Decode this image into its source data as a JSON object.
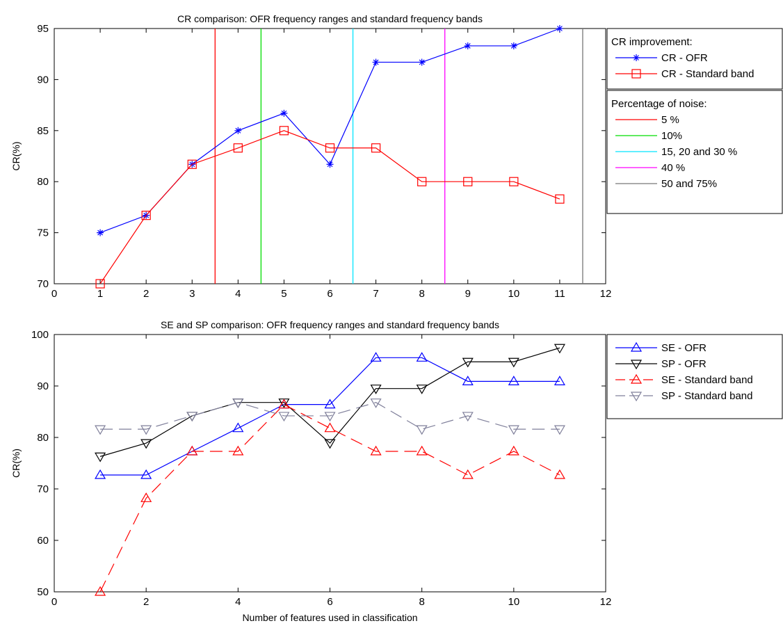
{
  "chart_data": [
    {
      "type": "line",
      "title": "CR comparison: OFR frequency ranges and standard frequency bands",
      "xlabel": "",
      "ylabel": "CR(%)",
      "xlim": [
        0,
        12
      ],
      "ylim": [
        70,
        95
      ],
      "xticks": [
        0,
        1,
        2,
        3,
        4,
        5,
        6,
        7,
        8,
        9,
        10,
        11,
        12
      ],
      "yticks": [
        70,
        75,
        80,
        85,
        90,
        95
      ],
      "grid": false,
      "series": [
        {
          "name": "CR - OFR",
          "color": "#0000ff",
          "marker": "asterisk",
          "dash": "solid",
          "x": [
            1,
            2,
            3,
            4,
            5,
            6,
            7,
            8,
            9,
            10,
            11
          ],
          "values": [
            75,
            76.7,
            81.7,
            85,
            86.7,
            81.7,
            91.7,
            91.7,
            93.3,
            93.3,
            95
          ]
        },
        {
          "name": "CR - Standard band",
          "color": "#ff0000",
          "marker": "square",
          "dash": "solid",
          "x": [
            1,
            2,
            3,
            4,
            5,
            6,
            7,
            8,
            9,
            10,
            11
          ],
          "values": [
            70,
            76.7,
            81.7,
            83.3,
            85,
            83.3,
            83.3,
            80,
            80,
            80,
            78.3
          ]
        }
      ],
      "vlines": [
        {
          "name": "5 %",
          "x": 3.5,
          "color": "#ff0000"
        },
        {
          "name": "10%",
          "x": 4.5,
          "color": "#00dd00"
        },
        {
          "name": "15, 20 and 30 %",
          "x": 6.5,
          "color": "#00e5ff"
        },
        {
          "name": "40 %",
          "x": 8.5,
          "color": "#ff00ff"
        },
        {
          "name": "50 and 75%",
          "x": 11.5,
          "color": "#777777"
        }
      ],
      "legends": [
        {
          "title": "CR improvement:",
          "placement": "outside-right-top",
          "entries": [
            "CR - OFR",
            "CR - Standard band"
          ]
        },
        {
          "title": "Percentage of noise:",
          "placement": "outside-right",
          "entries": [
            "5 %",
            "10%",
            "15, 20 and 30 %",
            "40 %",
            "50 and 75%"
          ]
        }
      ]
    },
    {
      "type": "line",
      "title": "SE and SP comparison: OFR frequency ranges and standard frequency bands",
      "xlabel": "Number of features used in classification",
      "ylabel": "CR(%)",
      "xlim": [
        0,
        12
      ],
      "ylim": [
        50,
        100
      ],
      "xticks": [
        0,
        2,
        4,
        6,
        8,
        10,
        12
      ],
      "yticks": [
        50,
        60,
        70,
        80,
        90,
        100
      ],
      "grid": false,
      "series": [
        {
          "name": "SE - OFR",
          "color": "#0000ff",
          "marker": "triangle-up",
          "dash": "solid",
          "x": [
            1,
            2,
            3,
            4,
            5,
            6,
            7,
            8,
            9,
            10,
            11
          ],
          "values": [
            72.7,
            72.7,
            77.3,
            81.8,
            86.4,
            86.4,
            95.5,
            95.5,
            90.9,
            90.9,
            90.9
          ]
        },
        {
          "name": "SP - OFR",
          "color": "#000000",
          "marker": "triangle-down",
          "dash": "solid",
          "x": [
            1,
            2,
            3,
            4,
            5,
            6,
            7,
            8,
            9,
            10,
            11
          ],
          "values": [
            76.3,
            78.9,
            84.2,
            86.8,
            86.8,
            78.9,
            89.5,
            89.5,
            94.7,
            94.7,
            97.4
          ]
        },
        {
          "name": "SE - Standard band",
          "color": "#ff0000",
          "marker": "triangle-up",
          "dash": "dashed",
          "x": [
            1,
            2,
            3,
            4,
            5,
            6,
            7,
            8,
            9,
            10,
            11
          ],
          "values": [
            50,
            68.2,
            77.3,
            77.3,
            86.4,
            81.8,
            77.3,
            77.3,
            72.7,
            77.3,
            72.7
          ]
        },
        {
          "name": "SP - Standard band",
          "color": "#7f7f9a",
          "marker": "triangle-down",
          "dash": "dashed",
          "x": [
            1,
            2,
            3,
            4,
            5,
            6,
            7,
            8,
            9,
            10,
            11
          ],
          "values": [
            81.6,
            81.6,
            84.2,
            86.8,
            84.2,
            84.2,
            86.8,
            81.6,
            84.2,
            81.6,
            81.6
          ]
        }
      ],
      "legends": [
        {
          "title": "",
          "placement": "outside-right-top",
          "entries": [
            "SE - OFR",
            "SP - OFR",
            "SE - Standard band",
            "SP - Standard band"
          ]
        }
      ]
    }
  ]
}
